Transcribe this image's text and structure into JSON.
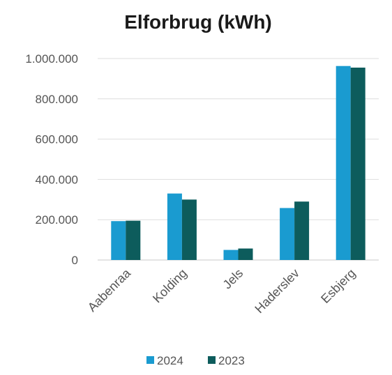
{
  "chart_data": {
    "type": "bar",
    "title": "Elforbrug (kWh)",
    "categories": [
      "Aabenraa",
      "Kolding",
      "Jels",
      "Haderslev",
      "Esbjerg"
    ],
    "series": [
      {
        "name": "2024",
        "color": "#1a9bd0",
        "values": [
          193000,
          330000,
          50000,
          258000,
          963000
        ]
      },
      {
        "name": "2023",
        "color": "#0d5c5c",
        "values": [
          195000,
          300000,
          57000,
          290000,
          955000
        ]
      }
    ],
    "ylim": [
      0,
      1000000
    ],
    "yticks": [
      0,
      200000,
      400000,
      600000,
      800000,
      1000000
    ],
    "ytick_labels": [
      "0",
      "200.000",
      "400.000",
      "600.000",
      "800.000",
      "1.000.000"
    ],
    "grid": true,
    "legend": "bottom-center"
  }
}
